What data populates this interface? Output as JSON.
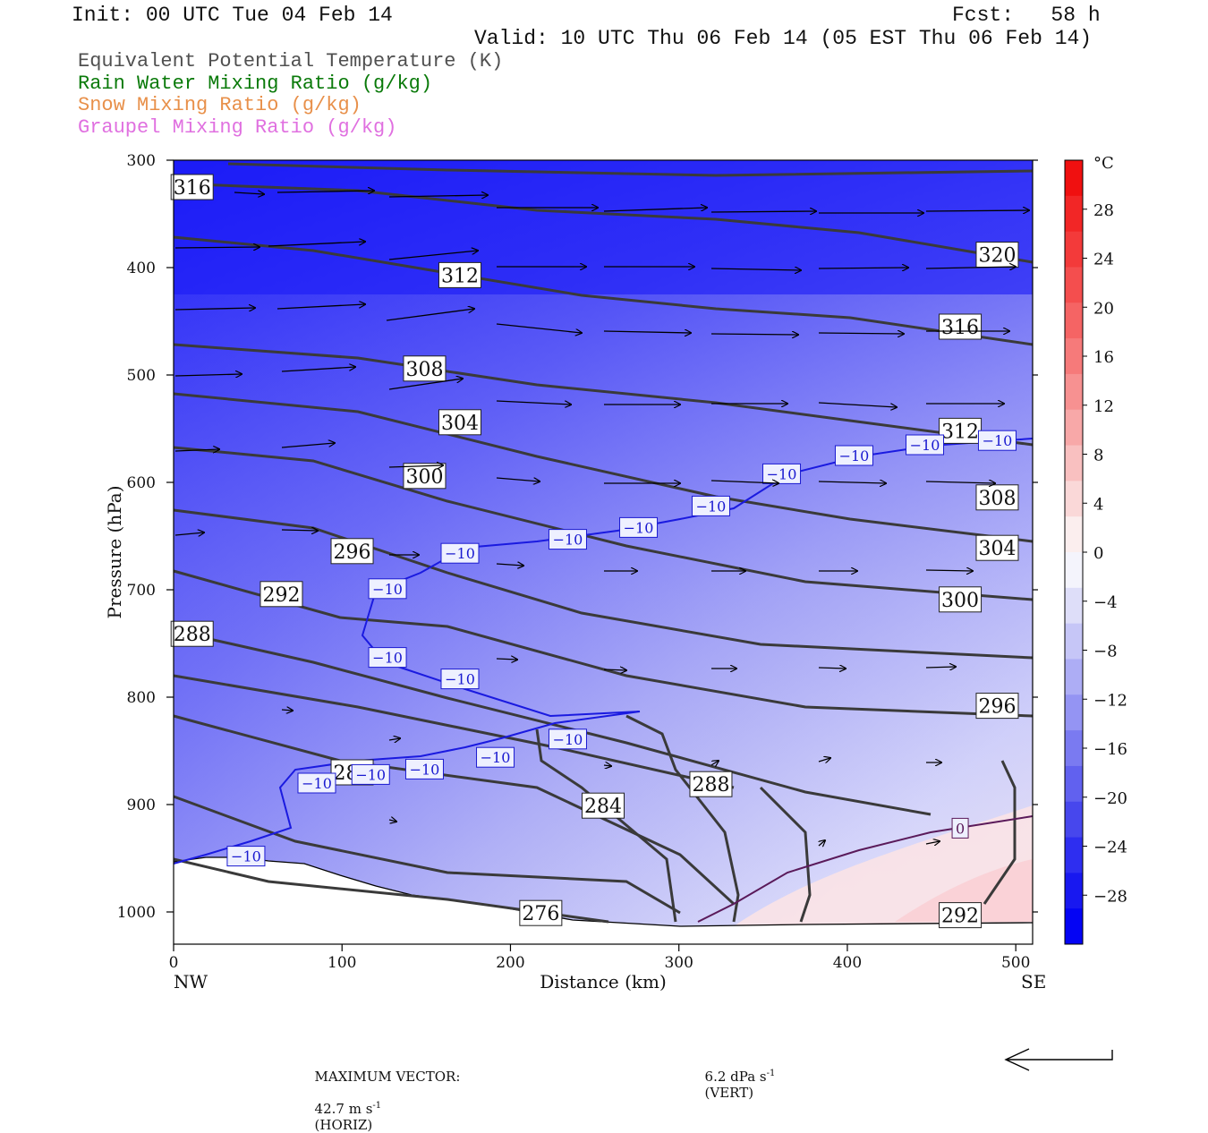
{
  "header": {
    "init": "Init: 00 UTC Tue 04 Feb 14",
    "fcst": "Fcst:   58 h",
    "valid": "Valid: 10 UTC Thu 06 Feb 14 (05 EST Thu 06 Feb 14)"
  },
  "legend": [
    {
      "text": "Equivalent Potential Temperature (K)",
      "color": "#505050"
    },
    {
      "text": "Rain Water Mixing Ratio (g/kg)",
      "color": "#0a7a0a"
    },
    {
      "text": "Snow Mixing Ratio (g/kg)",
      "color": "#e8904a"
    },
    {
      "text": "Graupel Mixing Ratio (g/kg)",
      "color": "#e070e0"
    }
  ],
  "colorbar": {
    "unit": "°C",
    "labels": [
      "28",
      "24",
      "20",
      "16",
      "12",
      "8",
      "4",
      "0",
      "−4",
      "−8",
      "−12",
      "−16",
      "−20",
      "−24",
      "−28"
    ]
  },
  "footer": {
    "max_vector_label": "MAXIMUM VECTOR:",
    "horiz_value": "42.7 m s",
    "horiz_unit": "(HORIZ)",
    "vert_value": "6.2 dPa s",
    "vert_unit": "(VERT)",
    "superscript": "-1"
  },
  "chart_data": {
    "type": "contour",
    "xlabel": "Distance (km)",
    "ylabel": "Pressure (hPa)",
    "xlim": [
      0,
      510
    ],
    "ylim": [
      1030,
      300
    ],
    "x_ticks": [
      0,
      100,
      200,
      300,
      400,
      500
    ],
    "y_ticks": [
      300,
      400,
      500,
      600,
      700,
      800,
      900,
      1000
    ],
    "x_end_labels": {
      "left": "NW",
      "right": "SE"
    },
    "shaded_field": "Temperature (°C)",
    "colorbar_range": [
      -32,
      32
    ],
    "theta_e_contours_K": [
      276,
      280,
      284,
      288,
      292,
      296,
      300,
      304,
      308,
      312,
      316,
      320
    ],
    "theta_e_labels": [
      {
        "value": "316",
        "x": 11,
        "p": 325
      },
      {
        "value": "312",
        "x": 170,
        "p": 407
      },
      {
        "value": "308",
        "x": 149,
        "p": 494
      },
      {
        "value": "304",
        "x": 170,
        "p": 544
      },
      {
        "value": "300",
        "x": 149,
        "p": 594
      },
      {
        "value": "296",
        "x": 106,
        "p": 664
      },
      {
        "value": "292",
        "x": 64,
        "p": 704
      },
      {
        "value": "288",
        "x": 11,
        "p": 741
      },
      {
        "value": "280",
        "x": 106,
        "p": 870
      },
      {
        "value": "284",
        "x": 255,
        "p": 901
      },
      {
        "value": "288",
        "x": 319,
        "p": 881
      },
      {
        "value": "276",
        "x": 218,
        "p": 1001
      },
      {
        "value": "320",
        "x": 489,
        "p": 388
      },
      {
        "value": "316",
        "x": 467,
        "p": 455
      },
      {
        "value": "312",
        "x": 467,
        "p": 552
      },
      {
        "value": "308",
        "x": 489,
        "p": 614
      },
      {
        "value": "304",
        "x": 489,
        "p": 661
      },
      {
        "value": "300",
        "x": 467,
        "p": 709
      },
      {
        "value": "296",
        "x": 489,
        "p": 808
      },
      {
        "value": "292",
        "x": 467,
        "p": 1003
      }
    ],
    "isotherm_labels": [
      {
        "value": "−10",
        "x": 170,
        "p": 666
      },
      {
        "value": "−10",
        "x": 127,
        "p": 699
      },
      {
        "value": "−10",
        "x": 127,
        "p": 763
      },
      {
        "value": "−10",
        "x": 170,
        "p": 783
      },
      {
        "value": "−10",
        "x": 234,
        "p": 653
      },
      {
        "value": "−10",
        "x": 276,
        "p": 642
      },
      {
        "value": "−10",
        "x": 319,
        "p": 622
      },
      {
        "value": "−10",
        "x": 361,
        "p": 592
      },
      {
        "value": "−10",
        "x": 404,
        "p": 575
      },
      {
        "value": "−10",
        "x": 446,
        "p": 565
      },
      {
        "value": "−10",
        "x": 489,
        "p": 561
      },
      {
        "value": "−10",
        "x": 234,
        "p": 839
      },
      {
        "value": "−10",
        "x": 191,
        "p": 856
      },
      {
        "value": "−10",
        "x": 149,
        "p": 867
      },
      {
        "value": "−10",
        "x": 117,
        "p": 872
      },
      {
        "value": "−10",
        "x": 85,
        "p": 880
      },
      {
        "value": "−10",
        "x": 43,
        "p": 948
      },
      {
        "value": "0",
        "x": 467,
        "p": 922
      }
    ]
  }
}
